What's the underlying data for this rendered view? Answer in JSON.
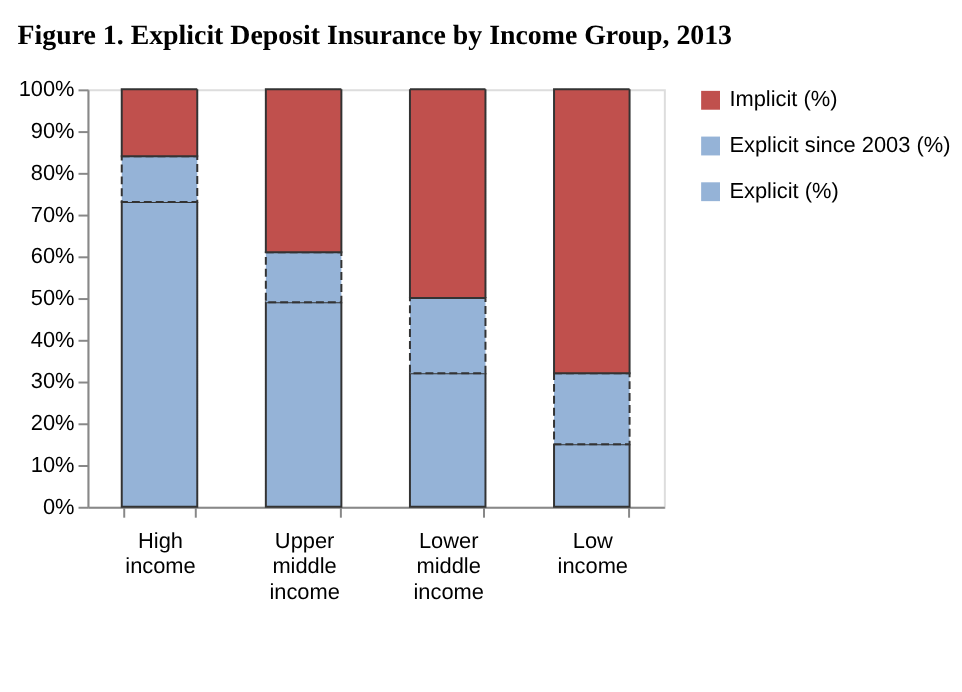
{
  "chart_data": {
    "type": "bar",
    "title": "Figure 1. Explicit Deposit Insurance by Income Group, 2013",
    "categories": [
      "High income",
      "Upper middle income",
      "Lower middle income",
      "Low income"
    ],
    "stacked": true,
    "series": [
      {
        "name": "Explicit (%)",
        "color": "#95b3d7",
        "values": [
          73,
          49,
          32,
          15
        ]
      },
      {
        "name": "Explicit since 2003 (%)",
        "color": "#95b3d7",
        "values": [
          11,
          12,
          18,
          17
        ],
        "line_style": "dashed"
      },
      {
        "name": "Implicit (%)",
        "color": "#c0504d",
        "values": [
          16,
          39,
          50,
          68
        ]
      }
    ],
    "ylim": [
      0,
      100
    ],
    "yticks": [
      {
        "value": 0,
        "label": "0%"
      },
      {
        "value": 10,
        "label": "10%"
      },
      {
        "value": 20,
        "label": "20%"
      },
      {
        "value": 30,
        "label": "30%"
      },
      {
        "value": 40,
        "label": "40%"
      },
      {
        "value": 50,
        "label": "50%"
      },
      {
        "value": 60,
        "label": "60%"
      },
      {
        "value": 70,
        "label": "70%"
      },
      {
        "value": 80,
        "label": "80%"
      },
      {
        "value": 90,
        "label": "90%"
      },
      {
        "value": 100,
        "label": "100%"
      }
    ],
    "grid": false,
    "legend": "right"
  }
}
